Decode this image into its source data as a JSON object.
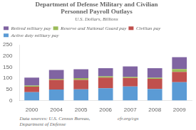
{
  "chart_data": {
    "type": "bar",
    "title": "Department of Defense Military and Civilian\nPersonnel Payroll Outlays",
    "subtitle": "U.S. Dollars, Billions",
    "categories": [
      "2000",
      "2004",
      "2005",
      "2006",
      "2007",
      "2008",
      "2009"
    ],
    "series": [
      {
        "name": "Active duty military pay",
        "color": "#5b9bd5",
        "values": [
          37,
          49,
          50,
          55,
          63,
          52,
          82
        ]
      },
      {
        "name": "Civilian pay",
        "color": "#c0504d",
        "values": [
          25,
          43,
          42,
          48,
          38,
          45,
          46
        ]
      },
      {
        "name": "Reserve and National Guard pay",
        "color": "#9bbb59",
        "values": [
          5,
          5,
          8,
          5,
          5,
          5,
          13
        ]
      },
      {
        "name": "Retired military pay",
        "color": "#8064a2",
        "values": [
          36,
          40,
          40,
          37,
          47,
          43,
          54
        ]
      }
    ],
    "stacked": true,
    "ylim": [
      0,
      250
    ],
    "yticks": [
      0,
      50,
      100,
      150,
      200,
      250
    ],
    "grid": false,
    "legend": "upper left",
    "annotations": [
      "Data sources: U.S. Census Bureau,\nDepartment of Defense",
      "cfr.org/cgs"
    ]
  }
}
